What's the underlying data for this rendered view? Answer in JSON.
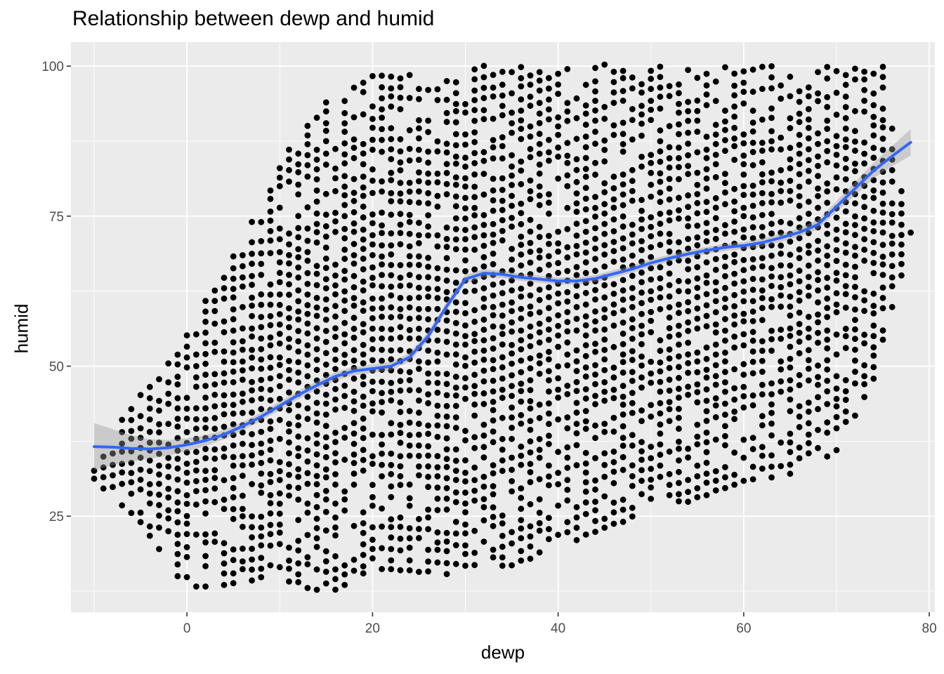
{
  "chart_data": {
    "type": "scatter",
    "title": "Relationship between dewp and humid",
    "xlabel": "dewp",
    "ylabel": "humid",
    "xlim": [
      -12.5,
      80.6
    ],
    "ylim": [
      9.0,
      104.0
    ],
    "x_ticks": [
      0,
      20,
      40,
      60,
      80
    ],
    "y_ticks": [
      25,
      50,
      75,
      100
    ],
    "grid": true,
    "colors": {
      "panel": "#ebebeb",
      "grid": "#ffffff",
      "points": "#000000",
      "smooth_line": "#3366ff",
      "ribbon": "#999999"
    },
    "scatter_description": "dense grid of discrete readings; dewp in whole °F steps from about -10 to 78, humid from about 12 to 100, lower bound of humid rising with dewp",
    "point_envelope": {
      "dewp": [
        -10,
        -5,
        0,
        5,
        10,
        15,
        20,
        25,
        30,
        35,
        40,
        45,
        50,
        55,
        60,
        65,
        70,
        75,
        78
      ],
      "humid_min": [
        31,
        24,
        13,
        14,
        15,
        12,
        16,
        16,
        15,
        17,
        20,
        23,
        26,
        28,
        31,
        32,
        36,
        51,
        72
      ],
      "humid_max": [
        33,
        46,
        55,
        70,
        84,
        95,
        100,
        98,
        100,
        100,
        100,
        100,
        100,
        100,
        100,
        100,
        100,
        100,
        73
      ]
    },
    "series": [
      {
        "name": "smooth",
        "type": "line",
        "x": [
          -10,
          -8,
          -6,
          -4,
          -2,
          0,
          2,
          4,
          6,
          8,
          10,
          12,
          14,
          16,
          18,
          20,
          22,
          24,
          26,
          28,
          30,
          32,
          34,
          36,
          38,
          40,
          42,
          44,
          46,
          48,
          50,
          52,
          54,
          56,
          58,
          60,
          62,
          64,
          66,
          68,
          70,
          72,
          74,
          76,
          78
        ],
        "y": [
          36.6,
          36.5,
          36.3,
          36.2,
          36.4,
          36.9,
          37.6,
          38.6,
          40.0,
          41.6,
          43.4,
          45.2,
          46.8,
          48.3,
          49.2,
          49.6,
          50.0,
          51.5,
          55.0,
          60.0,
          64.5,
          65.5,
          65.3,
          64.8,
          64.5,
          64.2,
          64.2,
          64.6,
          65.4,
          66.2,
          67.2,
          68.0,
          68.7,
          69.3,
          69.8,
          70.1,
          70.6,
          71.4,
          72.3,
          73.6,
          76.6,
          79.6,
          82.6,
          85.0,
          87.3
        ],
        "ci_halfwidth": [
          3.9,
          3.0,
          2.2,
          1.6,
          1.3,
          1.1,
          0.9,
          0.8,
          0.7,
          0.7,
          0.7,
          0.7,
          0.7,
          0.7,
          0.7,
          0.7,
          0.7,
          0.7,
          0.7,
          0.7,
          0.7,
          0.7,
          0.6,
          0.6,
          0.6,
          0.6,
          0.6,
          0.6,
          0.6,
          0.6,
          0.6,
          0.6,
          0.6,
          0.6,
          0.6,
          0.6,
          0.7,
          0.7,
          0.7,
          0.8,
          0.9,
          1.1,
          1.3,
          1.7,
          2.2
        ]
      }
    ]
  }
}
